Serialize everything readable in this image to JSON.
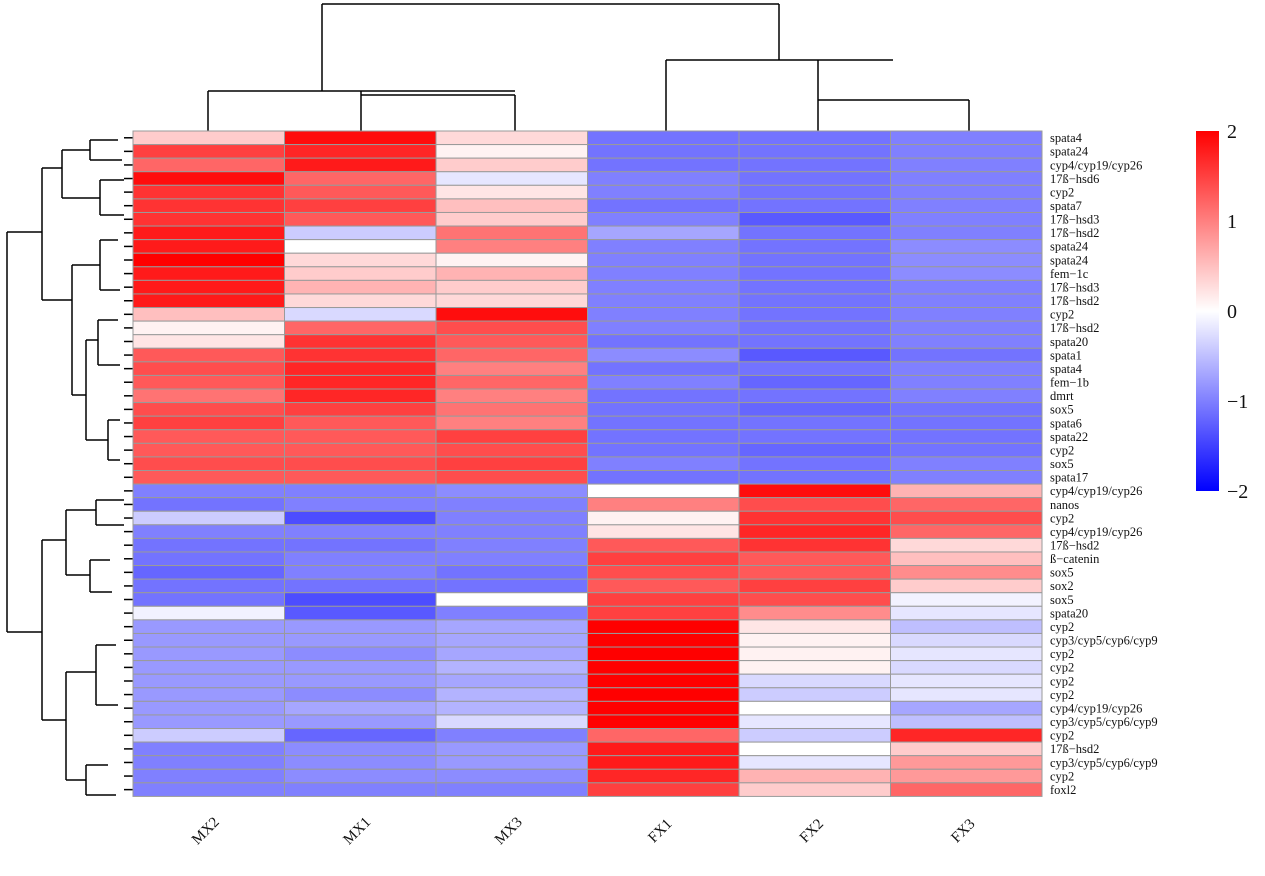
{
  "chart_data": {
    "type": "heatmap",
    "title": "",
    "columns": [
      "MX2",
      "MX1",
      "MX3",
      "FX1",
      "FX2",
      "FX3"
    ],
    "rows": [
      "spata4",
      "spata24",
      "cyp4/cyp19/cyp26",
      "17ß−hsd6",
      "cyp2",
      "spata7",
      "17ß−hsd3",
      "17ß−hsd2",
      "spata24",
      "spata24",
      "fem−1c",
      "17ß−hsd3",
      "17ß−hsd2",
      "cyp2",
      "17ß−hsd2",
      "spata20",
      "spata1",
      "spata4",
      "fem−1b",
      "dmrt",
      "sox5",
      "spata6",
      "spata22",
      "cyp2",
      "sox5",
      "spata17",
      "cyp4/cyp19/cyp26",
      "nanos",
      "cyp2",
      "cyp4/cyp19/cyp26",
      "17ß−hsd2",
      "ß−catenin",
      "sox5",
      "sox2",
      "sox5",
      "spata20",
      "cyp2",
      "cyp3/cyp5/cyp6/cyp9",
      "cyp2",
      "cyp2",
      "cyp2",
      "cyp2",
      "cyp4/cyp19/cyp26",
      "cyp3/cyp5/cyp6/cyp9",
      "cyp2",
      "17ß−hsd2",
      "cyp3/cyp5/cyp6/cyp9",
      "cyp2",
      "foxl2"
    ],
    "values": [
      [
        0.4,
        1.9,
        0.3,
        -1.1,
        -1.1,
        -1.0
      ],
      [
        1.5,
        1.7,
        0.1,
        -1.1,
        -1.1,
        -1.0
      ],
      [
        1.2,
        1.8,
        0.4,
        -1.1,
        -1.1,
        -1.0
      ],
      [
        1.9,
        1.2,
        -0.2,
        -1.0,
        -1.1,
        -1.0
      ],
      [
        1.6,
        1.3,
        0.2,
        -1.0,
        -1.1,
        -1.0
      ],
      [
        1.6,
        1.5,
        0.5,
        -1.1,
        -1.1,
        -1.0
      ],
      [
        1.6,
        1.3,
        0.4,
        -1.0,
        -1.3,
        -1.0
      ],
      [
        1.8,
        -0.4,
        1.1,
        -0.7,
        -1.1,
        -1.0
      ],
      [
        1.8,
        0.0,
        1.0,
        -1.0,
        -1.1,
        -0.9
      ],
      [
        2.0,
        0.3,
        0.1,
        -1.0,
        -1.1,
        -0.9
      ],
      [
        1.8,
        0.4,
        0.6,
        -1.0,
        -1.1,
        -0.9
      ],
      [
        1.8,
        0.6,
        0.4,
        -1.0,
        -1.1,
        -1.0
      ],
      [
        1.8,
        0.3,
        0.3,
        -1.0,
        -1.1,
        -1.0
      ],
      [
        0.5,
        -0.3,
        1.9,
        -1.0,
        -1.1,
        -1.0
      ],
      [
        0.1,
        1.2,
        1.4,
        -1.0,
        -1.1,
        -1.0
      ],
      [
        0.2,
        1.6,
        1.3,
        -1.1,
        -1.1,
        -1.0
      ],
      [
        1.3,
        1.6,
        1.2,
        -0.9,
        -1.3,
        -1.1
      ],
      [
        1.4,
        1.7,
        1.0,
        -1.1,
        -1.1,
        -1.0
      ],
      [
        1.3,
        1.7,
        1.2,
        -1.0,
        -1.2,
        -1.0
      ],
      [
        1.1,
        1.7,
        1.0,
        -1.1,
        -1.1,
        -1.0
      ],
      [
        1.4,
        1.5,
        1.1,
        -1.1,
        -1.2,
        -1.1
      ],
      [
        1.5,
        1.3,
        1.0,
        -1.1,
        -1.1,
        -1.1
      ],
      [
        1.3,
        1.3,
        1.5,
        -1.1,
        -1.1,
        -1.1
      ],
      [
        1.3,
        1.3,
        1.4,
        -1.1,
        -1.2,
        -1.1
      ],
      [
        1.4,
        1.4,
        1.5,
        -1.0,
        -1.1,
        -1.0
      ],
      [
        1.3,
        1.3,
        1.4,
        -1.1,
        -1.1,
        -1.0
      ],
      [
        -1.0,
        -1.0,
        -0.9,
        0.0,
        1.9,
        0.6
      ],
      [
        -1.1,
        -1.0,
        -1.0,
        1.0,
        1.4,
        1.2
      ],
      [
        -0.4,
        -1.4,
        -1.0,
        0.1,
        1.6,
        1.4
      ],
      [
        -1.0,
        -1.0,
        -1.0,
        0.2,
        1.7,
        1.2
      ],
      [
        -1.1,
        -1.1,
        -1.0,
        1.3,
        1.6,
        0.3
      ],
      [
        -1.1,
        -1.0,
        -1.0,
        1.5,
        1.3,
        0.5
      ],
      [
        -1.2,
        -1.0,
        -1.1,
        1.4,
        1.3,
        0.9
      ],
      [
        -1.1,
        -1.1,
        -1.1,
        1.3,
        1.5,
        0.4
      ],
      [
        -1.1,
        -1.4,
        0.0,
        1.5,
        1.4,
        -0.1
      ],
      [
        -0.1,
        -1.3,
        -1.0,
        1.5,
        0.9,
        -0.2
      ],
      [
        -0.8,
        -0.8,
        -0.7,
        2.0,
        0.2,
        -0.5
      ],
      [
        -0.8,
        -0.8,
        -0.7,
        2.0,
        0.1,
        -0.3
      ],
      [
        -0.8,
        -0.9,
        -0.7,
        2.0,
        0.1,
        -0.2
      ],
      [
        -0.8,
        -0.8,
        -0.6,
        2.0,
        0.1,
        -0.3
      ],
      [
        -0.8,
        -0.8,
        -0.7,
        2.0,
        -0.3,
        -0.2
      ],
      [
        -0.8,
        -0.9,
        -0.6,
        2.0,
        -0.4,
        -0.2
      ],
      [
        -0.8,
        -0.7,
        -0.6,
        2.0,
        0.0,
        -0.7
      ],
      [
        -0.8,
        -0.8,
        -0.3,
        2.0,
        -0.2,
        -0.5
      ],
      [
        -0.4,
        -1.2,
        -1.0,
        1.2,
        -0.4,
        1.7
      ],
      [
        -1.0,
        -0.9,
        -0.8,
        1.8,
        0.0,
        0.4
      ],
      [
        -1.0,
        -0.9,
        -0.8,
        1.8,
        -0.2,
        0.8
      ],
      [
        -1.0,
        -0.9,
        -0.9,
        1.7,
        0.6,
        0.8
      ],
      [
        -1.0,
        -1.0,
        -1.0,
        1.5,
        0.4,
        1.2
      ]
    ],
    "color_scale": {
      "min": -2,
      "max": 2,
      "low": "#0000ff",
      "mid": "#ffffff",
      "high": "#ff0000"
    },
    "legend": {
      "ticks": [
        2,
        1,
        0,
        -1,
        -2
      ],
      "tick_labels": [
        "2",
        "1",
        "0",
        "−1",
        "−2"
      ],
      "placement": "right"
    },
    "row_clusters": [
      "top group (rows 1–26)",
      "bottom group (rows 27–49)"
    ],
    "column_clusters": [
      "MX2, MX1, MX3",
      "FX1, FX2, FX3"
    ]
  }
}
